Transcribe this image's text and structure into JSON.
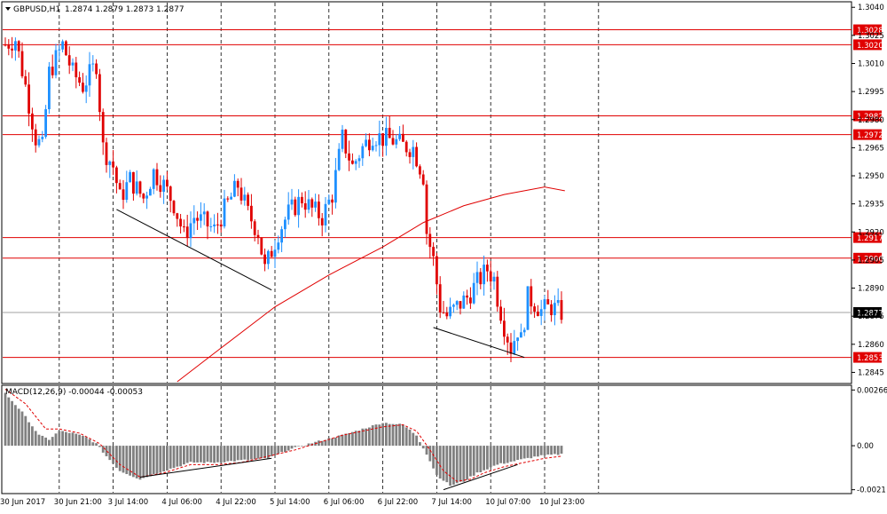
{
  "chart_data": [
    {
      "type": "candlestick",
      "symbol_title": "GBPUSD,H1",
      "ohlc_readout": "1.2874 1.2879 1.2873 1.2877",
      "y_ticks": [
        "1.3040",
        "1.3025",
        "1.3010",
        "1.2995",
        "1.2980",
        "1.2965",
        "1.2950",
        "1.2935",
        "1.2920",
        "1.2905",
        "1.2890",
        "1.2875",
        "1.2860",
        "1.2845"
      ],
      "ylim": [
        1.284,
        1.3042
      ],
      "x_tick_labels": [
        "30 Jun 2017",
        "30 Jun 21:00",
        "3 Jul 14:00",
        "4 Jul 06:00",
        "4 Jul 22:00",
        "5 Jul 14:00",
        "6 Jul 06:00",
        "6 Jul 22:00",
        "7 Jul 14:00",
        "10 Jul 07:00",
        "10 Jul 23:00"
      ],
      "x_tick_bar_index": [
        0,
        16,
        32,
        48,
        64,
        80,
        96,
        112,
        128,
        144,
        160
      ],
      "grid": "vertical dashed",
      "bull_color": "#1e90ff",
      "bear_color": "#e00000",
      "levels": [
        {
          "label": "1.3028",
          "value": 1.3028
        },
        {
          "label": "1.3020",
          "value": 1.302
        },
        {
          "label": "1.2982",
          "value": 1.2982
        },
        {
          "label": "1.2972",
          "value": 1.2972
        },
        {
          "label": "1.2917",
          "value": 1.2917
        },
        {
          "label": "1.2906",
          "value": 1.2906
        },
        {
          "label": "1.2853",
          "value": 1.2853
        }
      ],
      "level_color": "#e00000",
      "current_price": {
        "label": "1.2877",
        "value": 1.2877
      },
      "moving_average": {
        "color": "#e00000",
        "points": [
          [
            51,
            1.284
          ],
          [
            64,
            1.2858
          ],
          [
            80,
            1.288
          ],
          [
            96,
            1.2897
          ],
          [
            112,
            1.2912
          ],
          [
            124,
            1.2925
          ],
          [
            136,
            1.2934
          ],
          [
            148,
            1.294
          ],
          [
            160,
            1.2944
          ],
          [
            166,
            1.2942
          ]
        ]
      },
      "trendlines": [
        {
          "from": [
            33,
            1.2932
          ],
          "to": [
            79,
            1.2889
          ]
        },
        {
          "from": [
            127,
            1.2869
          ],
          "to": [
            154,
            1.2853
          ]
        }
      ],
      "anchors": [
        [
          0,
          1.302
        ],
        [
          3,
          1.3023
        ],
        [
          6,
          1.2998
        ],
        [
          9,
          1.297
        ],
        [
          11,
          1.2965
        ],
        [
          13,
          1.3005
        ],
        [
          17,
          1.302
        ],
        [
          20,
          1.3005
        ],
        [
          23,
          1.2998
        ],
        [
          27,
          1.301
        ],
        [
          29,
          1.2965
        ],
        [
          32,
          1.2955
        ],
        [
          34,
          1.2938
        ],
        [
          37,
          1.2948
        ],
        [
          41,
          1.2938
        ],
        [
          44,
          1.2952
        ],
        [
          47,
          1.2945
        ],
        [
          50,
          1.2935
        ],
        [
          53,
          1.2918
        ],
        [
          56,
          1.2928
        ],
        [
          59,
          1.2925
        ],
        [
          62,
          1.2921
        ],
        [
          65,
          1.2932
        ],
        [
          69,
          1.2945
        ],
        [
          72,
          1.293
        ],
        [
          75,
          1.292
        ],
        [
          77,
          1.29
        ],
        [
          79,
          1.291
        ],
        [
          81,
          1.292
        ],
        [
          84,
          1.293
        ],
        [
          88,
          1.2938
        ],
        [
          91,
          1.2932
        ],
        [
          94,
          1.2928
        ],
        [
          97,
          1.294
        ],
        [
          100,
          1.297
        ],
        [
          103,
          1.2955
        ],
        [
          106,
          1.2965
        ],
        [
          109,
          1.2972
        ],
        [
          112,
          1.297
        ],
        [
          115,
          1.2969
        ],
        [
          118,
          1.2966
        ],
        [
          121,
          1.2965
        ],
        [
          124,
          1.295
        ],
        [
          125,
          1.292
        ],
        [
          127,
          1.2905
        ],
        [
          129,
          1.288
        ],
        [
          131,
          1.2875
        ],
        [
          134,
          1.288
        ],
        [
          137,
          1.2885
        ],
        [
          140,
          1.2893
        ],
        [
          143,
          1.29
        ],
        [
          145,
          1.2895
        ],
        [
          146,
          1.2885
        ],
        [
          148,
          1.287
        ],
        [
          150,
          1.2858
        ],
        [
          152,
          1.2868
        ],
        [
          153,
          1.2862
        ],
        [
          155,
          1.2885
        ],
        [
          157,
          1.2882
        ],
        [
          159,
          1.2878
        ],
        [
          162,
          1.288
        ],
        [
          165,
          1.2877
        ]
      ]
    },
    {
      "type": "histogram+line",
      "title": "MACD(12,26,9) -0.00044 -0.00053",
      "y_ticks": [
        "0.00266",
        "0.00",
        "-0.0021"
      ],
      "y_tick_values": [
        0.00266,
        0.0,
        -0.0021
      ],
      "ylim": [
        -0.0022,
        0.0028
      ],
      "hist_color": "#808080",
      "signal_color": "#e00000",
      "hist_anchors": [
        [
          0,
          0.0025
        ],
        [
          5,
          0.0016
        ],
        [
          10,
          0.0005
        ],
        [
          13,
          0.0003
        ],
        [
          16,
          0.0007
        ],
        [
          20,
          0.0006
        ],
        [
          24,
          0.0004
        ],
        [
          27,
          0.0001
        ],
        [
          30,
          -0.0005
        ],
        [
          34,
          -0.0012
        ],
        [
          40,
          -0.0016
        ],
        [
          47,
          -0.0012
        ],
        [
          55,
          -0.0008
        ],
        [
          62,
          -0.0008
        ],
        [
          70,
          -0.0007
        ],
        [
          78,
          -0.0006
        ],
        [
          84,
          -0.0002
        ],
        [
          88,
          0.0
        ],
        [
          95,
          0.0003
        ],
        [
          100,
          0.0005
        ],
        [
          106,
          0.0008
        ],
        [
          112,
          0.0011
        ],
        [
          118,
          0.001
        ],
        [
          122,
          0.0005
        ],
        [
          125,
          -0.0004
        ],
        [
          128,
          -0.0014
        ],
        [
          132,
          -0.0019
        ],
        [
          136,
          -0.0017
        ],
        [
          140,
          -0.0013
        ],
        [
          146,
          -0.0009
        ],
        [
          152,
          -0.0007
        ],
        [
          158,
          -0.0005
        ],
        [
          165,
          -0.0004
        ]
      ],
      "signal_anchors": [
        [
          0,
          0.0027
        ],
        [
          6,
          0.002
        ],
        [
          12,
          0.0008
        ],
        [
          16,
          0.0008
        ],
        [
          22,
          0.0006
        ],
        [
          28,
          0.0001
        ],
        [
          34,
          -0.0009
        ],
        [
          40,
          -0.0015
        ],
        [
          47,
          -0.0013
        ],
        [
          55,
          -0.0009
        ],
        [
          63,
          -0.0009
        ],
        [
          70,
          -0.0008
        ],
        [
          78,
          -0.0005
        ],
        [
          86,
          -0.0002
        ],
        [
          94,
          0.0002
        ],
        [
          100,
          0.0005
        ],
        [
          106,
          0.0007
        ],
        [
          112,
          0.0009
        ],
        [
          118,
          0.001
        ],
        [
          122,
          0.0007
        ],
        [
          126,
          -0.0002
        ],
        [
          130,
          -0.0012
        ],
        [
          134,
          -0.0017
        ],
        [
          138,
          -0.0016
        ],
        [
          142,
          -0.0013
        ],
        [
          148,
          -0.001
        ],
        [
          154,
          -0.0008
        ],
        [
          160,
          -0.0006
        ],
        [
          165,
          -0.0005
        ]
      ],
      "trendlines": [
        {
          "from": [
            40,
            -0.0015
          ],
          "to": [
            79,
            -0.0006
          ]
        },
        {
          "from": [
            130,
            -0.0021
          ],
          "to": [
            152,
            -0.0009
          ]
        }
      ]
    }
  ]
}
